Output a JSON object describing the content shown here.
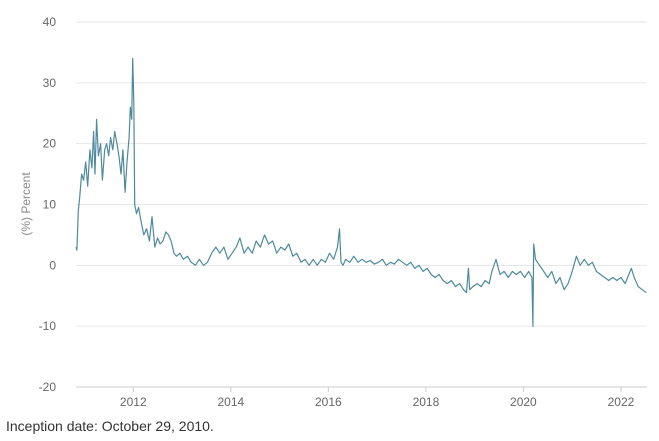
{
  "chart_data": {
    "type": "line",
    "title": "",
    "xlabel": "",
    "ylabel": "(%) Percent",
    "ylim": [
      -20,
      40
    ],
    "xlim": [
      "2010-10-29",
      "2022-07-15"
    ],
    "y_ticks": [
      40,
      30,
      20,
      10,
      0,
      -10,
      -20
    ],
    "x_ticks": [
      "2012",
      "2014",
      "2016",
      "2018",
      "2020",
      "2022"
    ],
    "grid": "horizontal",
    "legend": "none",
    "series": [
      {
        "color": "#4e8a9c",
        "points": [
          [
            "2010-10-29",
            3
          ],
          [
            "2010-11-05",
            2.5
          ],
          [
            "2010-11-15",
            9
          ],
          [
            "2010-11-25",
            11
          ],
          [
            "2010-12-10",
            15
          ],
          [
            "2010-12-25",
            14
          ],
          [
            "2011-01-10",
            17
          ],
          [
            "2011-01-25",
            13
          ],
          [
            "2011-02-10",
            19
          ],
          [
            "2011-02-25",
            16
          ],
          [
            "2011-03-10",
            22
          ],
          [
            "2011-03-20",
            15
          ],
          [
            "2011-04-01",
            24
          ],
          [
            "2011-04-15",
            18
          ],
          [
            "2011-05-01",
            20
          ],
          [
            "2011-05-15",
            14
          ],
          [
            "2011-06-01",
            19
          ],
          [
            "2011-06-15",
            20
          ],
          [
            "2011-07-01",
            18
          ],
          [
            "2011-07-15",
            21
          ],
          [
            "2011-08-01",
            19
          ],
          [
            "2011-08-15",
            22
          ],
          [
            "2011-09-01",
            20
          ],
          [
            "2011-09-15",
            18
          ],
          [
            "2011-10-01",
            15
          ],
          [
            "2011-10-15",
            19
          ],
          [
            "2011-11-01",
            12
          ],
          [
            "2011-11-15",
            17
          ],
          [
            "2011-12-01",
            21
          ],
          [
            "2011-12-10",
            26
          ],
          [
            "2011-12-20",
            24
          ],
          [
            "2011-12-28",
            34
          ],
          [
            "2012-01-05",
            27
          ],
          [
            "2012-01-12",
            10
          ],
          [
            "2012-01-25",
            8.5
          ],
          [
            "2012-02-10",
            9.5
          ],
          [
            "2012-03-01",
            7
          ],
          [
            "2012-03-20",
            5
          ],
          [
            "2012-04-10",
            6
          ],
          [
            "2012-05-01",
            4
          ],
          [
            "2012-05-20",
            8
          ],
          [
            "2012-06-10",
            3
          ],
          [
            "2012-07-01",
            4.5
          ],
          [
            "2012-07-20",
            3.5
          ],
          [
            "2012-08-10",
            4
          ],
          [
            "2012-09-01",
            5.5
          ],
          [
            "2012-09-20",
            5
          ],
          [
            "2012-10-10",
            4
          ],
          [
            "2012-11-01",
            2
          ],
          [
            "2012-11-20",
            1.5
          ],
          [
            "2012-12-15",
            2
          ],
          [
            "2013-01-10",
            1
          ],
          [
            "2013-02-10",
            1.5
          ],
          [
            "2013-03-10",
            0.5
          ],
          [
            "2013-04-10",
            0
          ],
          [
            "2013-05-10",
            1
          ],
          [
            "2013-06-10",
            0
          ],
          [
            "2013-07-10",
            0.5
          ],
          [
            "2013-08-10",
            2
          ],
          [
            "2013-09-10",
            3
          ],
          [
            "2013-10-10",
            2
          ],
          [
            "2013-11-10",
            3
          ],
          [
            "2013-12-10",
            1
          ],
          [
            "2014-01-10",
            2
          ],
          [
            "2014-02-10",
            3
          ],
          [
            "2014-03-10",
            4.5
          ],
          [
            "2014-04-10",
            2
          ],
          [
            "2014-05-10",
            3
          ],
          [
            "2014-06-10",
            2
          ],
          [
            "2014-07-10",
            4
          ],
          [
            "2014-08-10",
            3
          ],
          [
            "2014-09-10",
            5
          ],
          [
            "2014-10-10",
            3.5
          ],
          [
            "2014-11-10",
            4
          ],
          [
            "2014-12-10",
            2
          ],
          [
            "2015-01-10",
            3
          ],
          [
            "2015-02-10",
            2.5
          ],
          [
            "2015-03-10",
            3.5
          ],
          [
            "2015-04-10",
            1.5
          ],
          [
            "2015-05-10",
            2
          ],
          [
            "2015-06-10",
            0.5
          ],
          [
            "2015-07-10",
            1
          ],
          [
            "2015-08-10",
            0
          ],
          [
            "2015-09-10",
            1
          ],
          [
            "2015-10-10",
            0
          ],
          [
            "2015-11-10",
            1
          ],
          [
            "2015-12-10",
            0.5
          ],
          [
            "2016-01-10",
            2
          ],
          [
            "2016-02-10",
            1
          ],
          [
            "2016-03-10",
            3
          ],
          [
            "2016-03-25",
            6
          ],
          [
            "2016-04-05",
            0.5
          ],
          [
            "2016-04-20",
            0
          ],
          [
            "2016-05-10",
            1
          ],
          [
            "2016-06-10",
            0.5
          ],
          [
            "2016-07-10",
            1.5
          ],
          [
            "2016-08-10",
            0.5
          ],
          [
            "2016-09-10",
            1
          ],
          [
            "2016-10-10",
            0.5
          ],
          [
            "2016-11-10",
            0.8
          ],
          [
            "2016-12-10",
            0.2
          ],
          [
            "2017-01-10",
            0.5
          ],
          [
            "2017-02-10",
            1
          ],
          [
            "2017-03-10",
            0
          ],
          [
            "2017-04-10",
            0.5
          ],
          [
            "2017-05-10",
            0.2
          ],
          [
            "2017-06-10",
            1
          ],
          [
            "2017-07-10",
            0.5
          ],
          [
            "2017-08-10",
            0
          ],
          [
            "2017-09-10",
            0.5
          ],
          [
            "2017-10-10",
            -0.5
          ],
          [
            "2017-11-10",
            0
          ],
          [
            "2017-12-10",
            -1
          ],
          [
            "2018-01-10",
            -0.5
          ],
          [
            "2018-02-10",
            -1.5
          ],
          [
            "2018-03-10",
            -2
          ],
          [
            "2018-04-10",
            -1.5
          ],
          [
            "2018-05-10",
            -2.5
          ],
          [
            "2018-06-10",
            -3
          ],
          [
            "2018-07-10",
            -2.5
          ],
          [
            "2018-08-10",
            -3.5
          ],
          [
            "2018-09-10",
            -3
          ],
          [
            "2018-10-10",
            -4
          ],
          [
            "2018-11-01",
            -4.5
          ],
          [
            "2018-11-15",
            -0.5
          ],
          [
            "2018-11-25",
            -4
          ],
          [
            "2018-12-20",
            -3.5
          ],
          [
            "2019-01-20",
            -3
          ],
          [
            "2019-02-20",
            -3.5
          ],
          [
            "2019-03-20",
            -2.5
          ],
          [
            "2019-04-20",
            -3
          ],
          [
            "2019-05-10",
            -1
          ],
          [
            "2019-06-10",
            1
          ],
          [
            "2019-07-10",
            -1.5
          ],
          [
            "2019-08-10",
            -1
          ],
          [
            "2019-09-10",
            -2
          ],
          [
            "2019-10-10",
            -1
          ],
          [
            "2019-11-10",
            -1.5
          ],
          [
            "2019-12-10",
            -1
          ],
          [
            "2020-01-10",
            -2
          ],
          [
            "2020-02-10",
            -1
          ],
          [
            "2020-03-05",
            -2
          ],
          [
            "2020-03-12",
            -10
          ],
          [
            "2020-03-18",
            3.5
          ],
          [
            "2020-04-01",
            1
          ],
          [
            "2020-05-01",
            0
          ],
          [
            "2020-06-01",
            -1
          ],
          [
            "2020-07-01",
            -2
          ],
          [
            "2020-08-01",
            -1
          ],
          [
            "2020-09-01",
            -3
          ],
          [
            "2020-10-01",
            -2
          ],
          [
            "2020-11-01",
            -4
          ],
          [
            "2020-12-01",
            -3
          ],
          [
            "2021-01-01",
            -1
          ],
          [
            "2021-02-01",
            1.5
          ],
          [
            "2021-03-01",
            0
          ],
          [
            "2021-04-01",
            1
          ],
          [
            "2021-05-01",
            0
          ],
          [
            "2021-06-01",
            0.5
          ],
          [
            "2021-07-01",
            -1
          ],
          [
            "2021-08-01",
            -1.5
          ],
          [
            "2021-09-01",
            -2
          ],
          [
            "2021-10-01",
            -2.5
          ],
          [
            "2021-11-01",
            -2
          ],
          [
            "2021-12-01",
            -2.5
          ],
          [
            "2022-01-01",
            -2
          ],
          [
            "2022-02-01",
            -3
          ],
          [
            "2022-03-01",
            -1.5
          ],
          [
            "2022-03-20",
            -0.5
          ],
          [
            "2022-04-10",
            -2
          ],
          [
            "2022-05-10",
            -3.5
          ],
          [
            "2022-06-10",
            -4
          ],
          [
            "2022-07-10",
            -4.5
          ]
        ]
      }
    ]
  },
  "footnote": "Inception date: October 29, 2010."
}
